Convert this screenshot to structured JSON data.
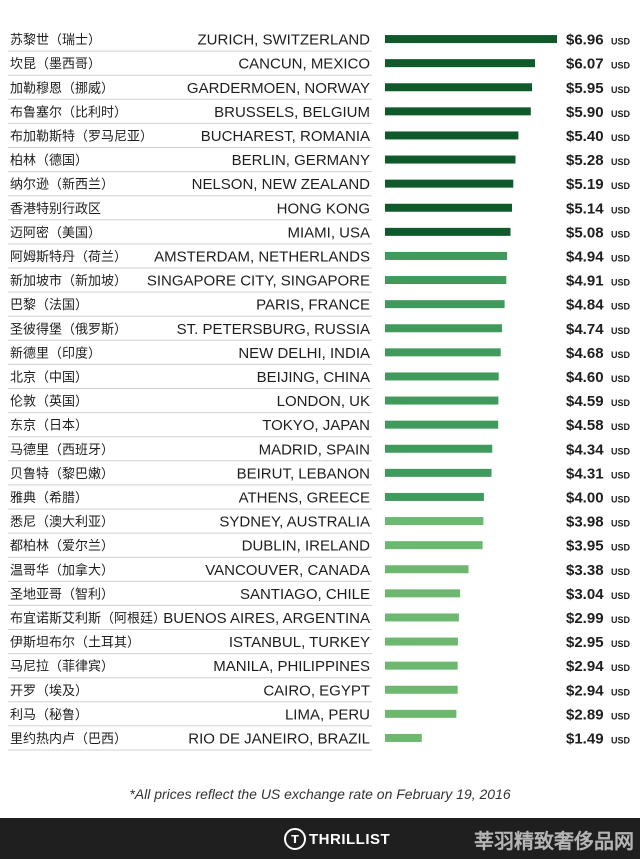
{
  "chart_data": {
    "type": "bar",
    "orientation": "horizontal",
    "unit": "USD",
    "currency_symbol": "$",
    "xlim": [
      0,
      6.96
    ],
    "grid": false,
    "legend": "none",
    "colors": {
      "high": "#0e5a2b",
      "mid": "#3f9a5c",
      "low": "#6cb86e"
    },
    "rows": [
      {
        "cn": "苏黎世（瑞士）",
        "city": "ZURICH, SWITZERLAND",
        "value": 6.96,
        "label": "$6.96",
        "tier": "high"
      },
      {
        "cn": "坎昆（墨西哥）",
        "city": "CANCUN, MEXICO",
        "value": 6.07,
        "label": "$6.07",
        "tier": "high"
      },
      {
        "cn": "加勒穆恩（挪威）",
        "city": "GARDERMOEN, NORWAY",
        "value": 5.95,
        "label": "$5.95",
        "tier": "high"
      },
      {
        "cn": "布鲁塞尔（比利时）",
        "city": "BRUSSELS, BELGIUM",
        "value": 5.9,
        "label": "$5.90",
        "tier": "high"
      },
      {
        "cn": "布加勒斯特（罗马尼亚）",
        "city": "BUCHAREST, ROMANIA",
        "value": 5.4,
        "label": "$5.40",
        "tier": "high"
      },
      {
        "cn": "柏林（德国）",
        "city": "BERLIN, GERMANY",
        "value": 5.28,
        "label": "$5.28",
        "tier": "high"
      },
      {
        "cn": "纳尔逊（新西兰）",
        "city": "NELSON, NEW ZEALAND",
        "value": 5.19,
        "label": "$5.19",
        "tier": "high"
      },
      {
        "cn": "香港特别行政区",
        "city": "HONG KONG",
        "value": 5.14,
        "label": "$5.14",
        "tier": "high"
      },
      {
        "cn": "迈阿密（美国）",
        "city": "MIAMI, USA",
        "value": 5.08,
        "label": "$5.08",
        "tier": "high"
      },
      {
        "cn": "阿姆斯特丹（荷兰）",
        "city": "AMSTERDAM, NETHERLANDS",
        "value": 4.94,
        "label": "$4.94",
        "tier": "mid"
      },
      {
        "cn": "新加坡市（新加坡）",
        "city": "SINGAPORE CITY, SINGAPORE",
        "value": 4.91,
        "label": "$4.91",
        "tier": "mid"
      },
      {
        "cn": "巴黎（法国）",
        "city": "PARIS, FRANCE",
        "value": 4.84,
        "label": "$4.84",
        "tier": "mid"
      },
      {
        "cn": "圣彼得堡（俄罗斯）",
        "city": "ST. PETERSBURG, RUSSIA",
        "value": 4.74,
        "label": "$4.74",
        "tier": "mid"
      },
      {
        "cn": "新德里（印度）",
        "city": "NEW DELHI, INDIA",
        "value": 4.68,
        "label": "$4.68",
        "tier": "mid"
      },
      {
        "cn": "北京（中国）",
        "city": "BEIJING, CHINA",
        "value": 4.6,
        "label": "$4.60",
        "tier": "mid"
      },
      {
        "cn": "伦敦（英国）",
        "city": "LONDON, UK",
        "value": 4.59,
        "label": "$4.59",
        "tier": "mid"
      },
      {
        "cn": "东京（日本）",
        "city": "TOKYO, JAPAN",
        "value": 4.58,
        "label": "$4.58",
        "tier": "mid"
      },
      {
        "cn": "马德里（西班牙）",
        "city": "MADRID, SPAIN",
        "value": 4.34,
        "label": "$4.34",
        "tier": "mid"
      },
      {
        "cn": "贝鲁特（黎巴嫩）",
        "city": "BEIRUT, LEBANON",
        "value": 4.31,
        "label": "$4.31",
        "tier": "mid"
      },
      {
        "cn": "雅典（希腊）",
        "city": "ATHENS, GREECE",
        "value": 4.0,
        "label": "$4.00",
        "tier": "mid"
      },
      {
        "cn": "悉尼（澳大利亚）",
        "city": "SYDNEY, AUSTRALIA",
        "value": 3.98,
        "label": "$3.98",
        "tier": "low"
      },
      {
        "cn": "都柏林（爱尔兰）",
        "city": "DUBLIN, IRELAND",
        "value": 3.95,
        "label": "$3.95",
        "tier": "low"
      },
      {
        "cn": "温哥华（加拿大）",
        "city": "VANCOUVER, CANADA",
        "value": 3.38,
        "label": "$3.38",
        "tier": "low"
      },
      {
        "cn": "圣地亚哥（智利）",
        "city": "SANTIAGO, CHILE",
        "value": 3.04,
        "label": "$3.04",
        "tier": "low"
      },
      {
        "cn": "布宜诺斯艾利斯（阿根廷）",
        "city": "BUENOS AIRES, ARGENTINA",
        "value": 2.99,
        "label": "$2.99",
        "tier": "low"
      },
      {
        "cn": "伊斯坦布尔（土耳其）",
        "city": "ISTANBUL, TURKEY",
        "value": 2.95,
        "label": "$2.95",
        "tier": "low"
      },
      {
        "cn": "马尼拉（菲律宾）",
        "city": "MANILA, PHILIPPINES",
        "value": 2.94,
        "label": "$2.94",
        "tier": "low"
      },
      {
        "cn": "开罗（埃及）",
        "city": "CAIRO, EGYPT",
        "value": 2.94,
        "label": "$2.94",
        "tier": "low"
      },
      {
        "cn": "利马（秘鲁）",
        "city": "LIMA, PERU",
        "value": 2.89,
        "label": "$2.89",
        "tier": "low"
      },
      {
        "cn": "里约热内卢（巴西）",
        "city": "RIO DE JANEIRO, BRAZIL",
        "value": 1.49,
        "label": "$1.49",
        "tier": "low"
      }
    ]
  },
  "footnote": "*All prices reflect the US exchange rate on February 19, 2016",
  "footer": {
    "brand": "THRILLIST",
    "logo_icon": "thrillist-logo-icon",
    "watermark": "莘羽精致奢侈品网"
  }
}
